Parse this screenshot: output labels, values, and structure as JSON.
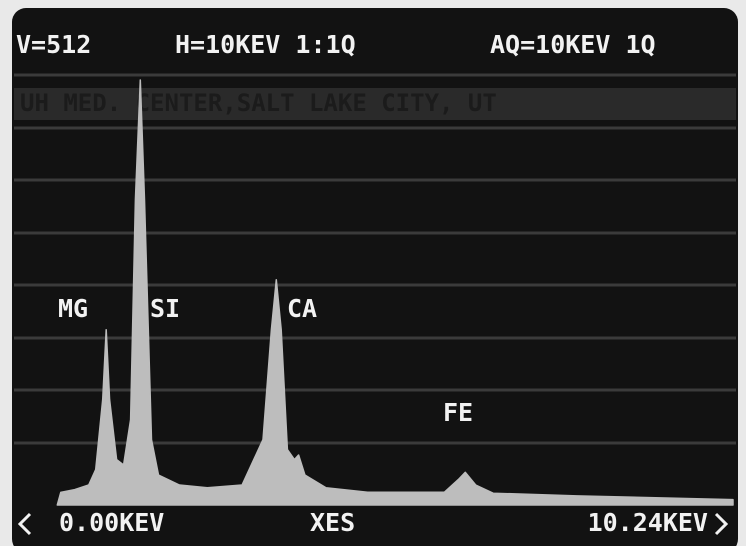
{
  "chart_data": {
    "type": "area",
    "header_texts": [
      "V=512",
      "H=10KEV 1:1Q",
      "AQ=10KEV 1Q"
    ],
    "subtitle": "UH MED. CENTER,SALT LAKE CITY, UT",
    "x_label": "XES",
    "xlim": [
      0,
      10.24
    ],
    "xticks": [
      {
        "value": 0,
        "label": "0.00KEV"
      },
      {
        "value": 10.24,
        "label": "10.24KEV"
      }
    ],
    "ylim": [
      0,
      512
    ],
    "color": "#bdbdbd",
    "x": [
      0.55,
      0.6,
      0.8,
      1.0,
      1.1,
      1.2,
      1.25,
      1.3,
      1.4,
      1.5,
      1.6,
      1.67,
      1.74,
      1.8,
      1.9,
      2.0,
      2.3,
      2.7,
      3.2,
      3.5,
      3.62,
      3.69,
      3.76,
      3.85,
      3.95,
      4.01,
      4.1,
      4.4,
      5.0,
      6.1,
      6.3,
      6.4,
      6.55,
      6.8,
      8.0,
      10.24
    ],
    "values": [
      0,
      14,
      17,
      22,
      39,
      116,
      193,
      116,
      50,
      44,
      94,
      336,
      468,
      336,
      72,
      33,
      22,
      19,
      22,
      72,
      193,
      248,
      193,
      61,
      50,
      55,
      33,
      19,
      14,
      14,
      28,
      36,
      22,
      13,
      10,
      6
    ],
    "annotations": [
      "MG",
      "SI",
      "CA",
      "FE"
    ]
  }
}
